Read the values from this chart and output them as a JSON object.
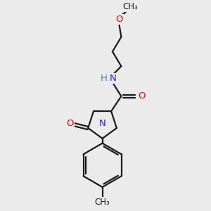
{
  "bg_color": "#ebebeb",
  "bond_color": "#1a1a1a",
  "N_color": "#2020ee",
  "O_color": "#ee0000",
  "H_color": "#4a8fa0",
  "figsize": [
    3.0,
    3.0
  ],
  "dpi": 100,
  "xlim": [
    0,
    10
  ],
  "ylim": [
    0,
    10
  ]
}
